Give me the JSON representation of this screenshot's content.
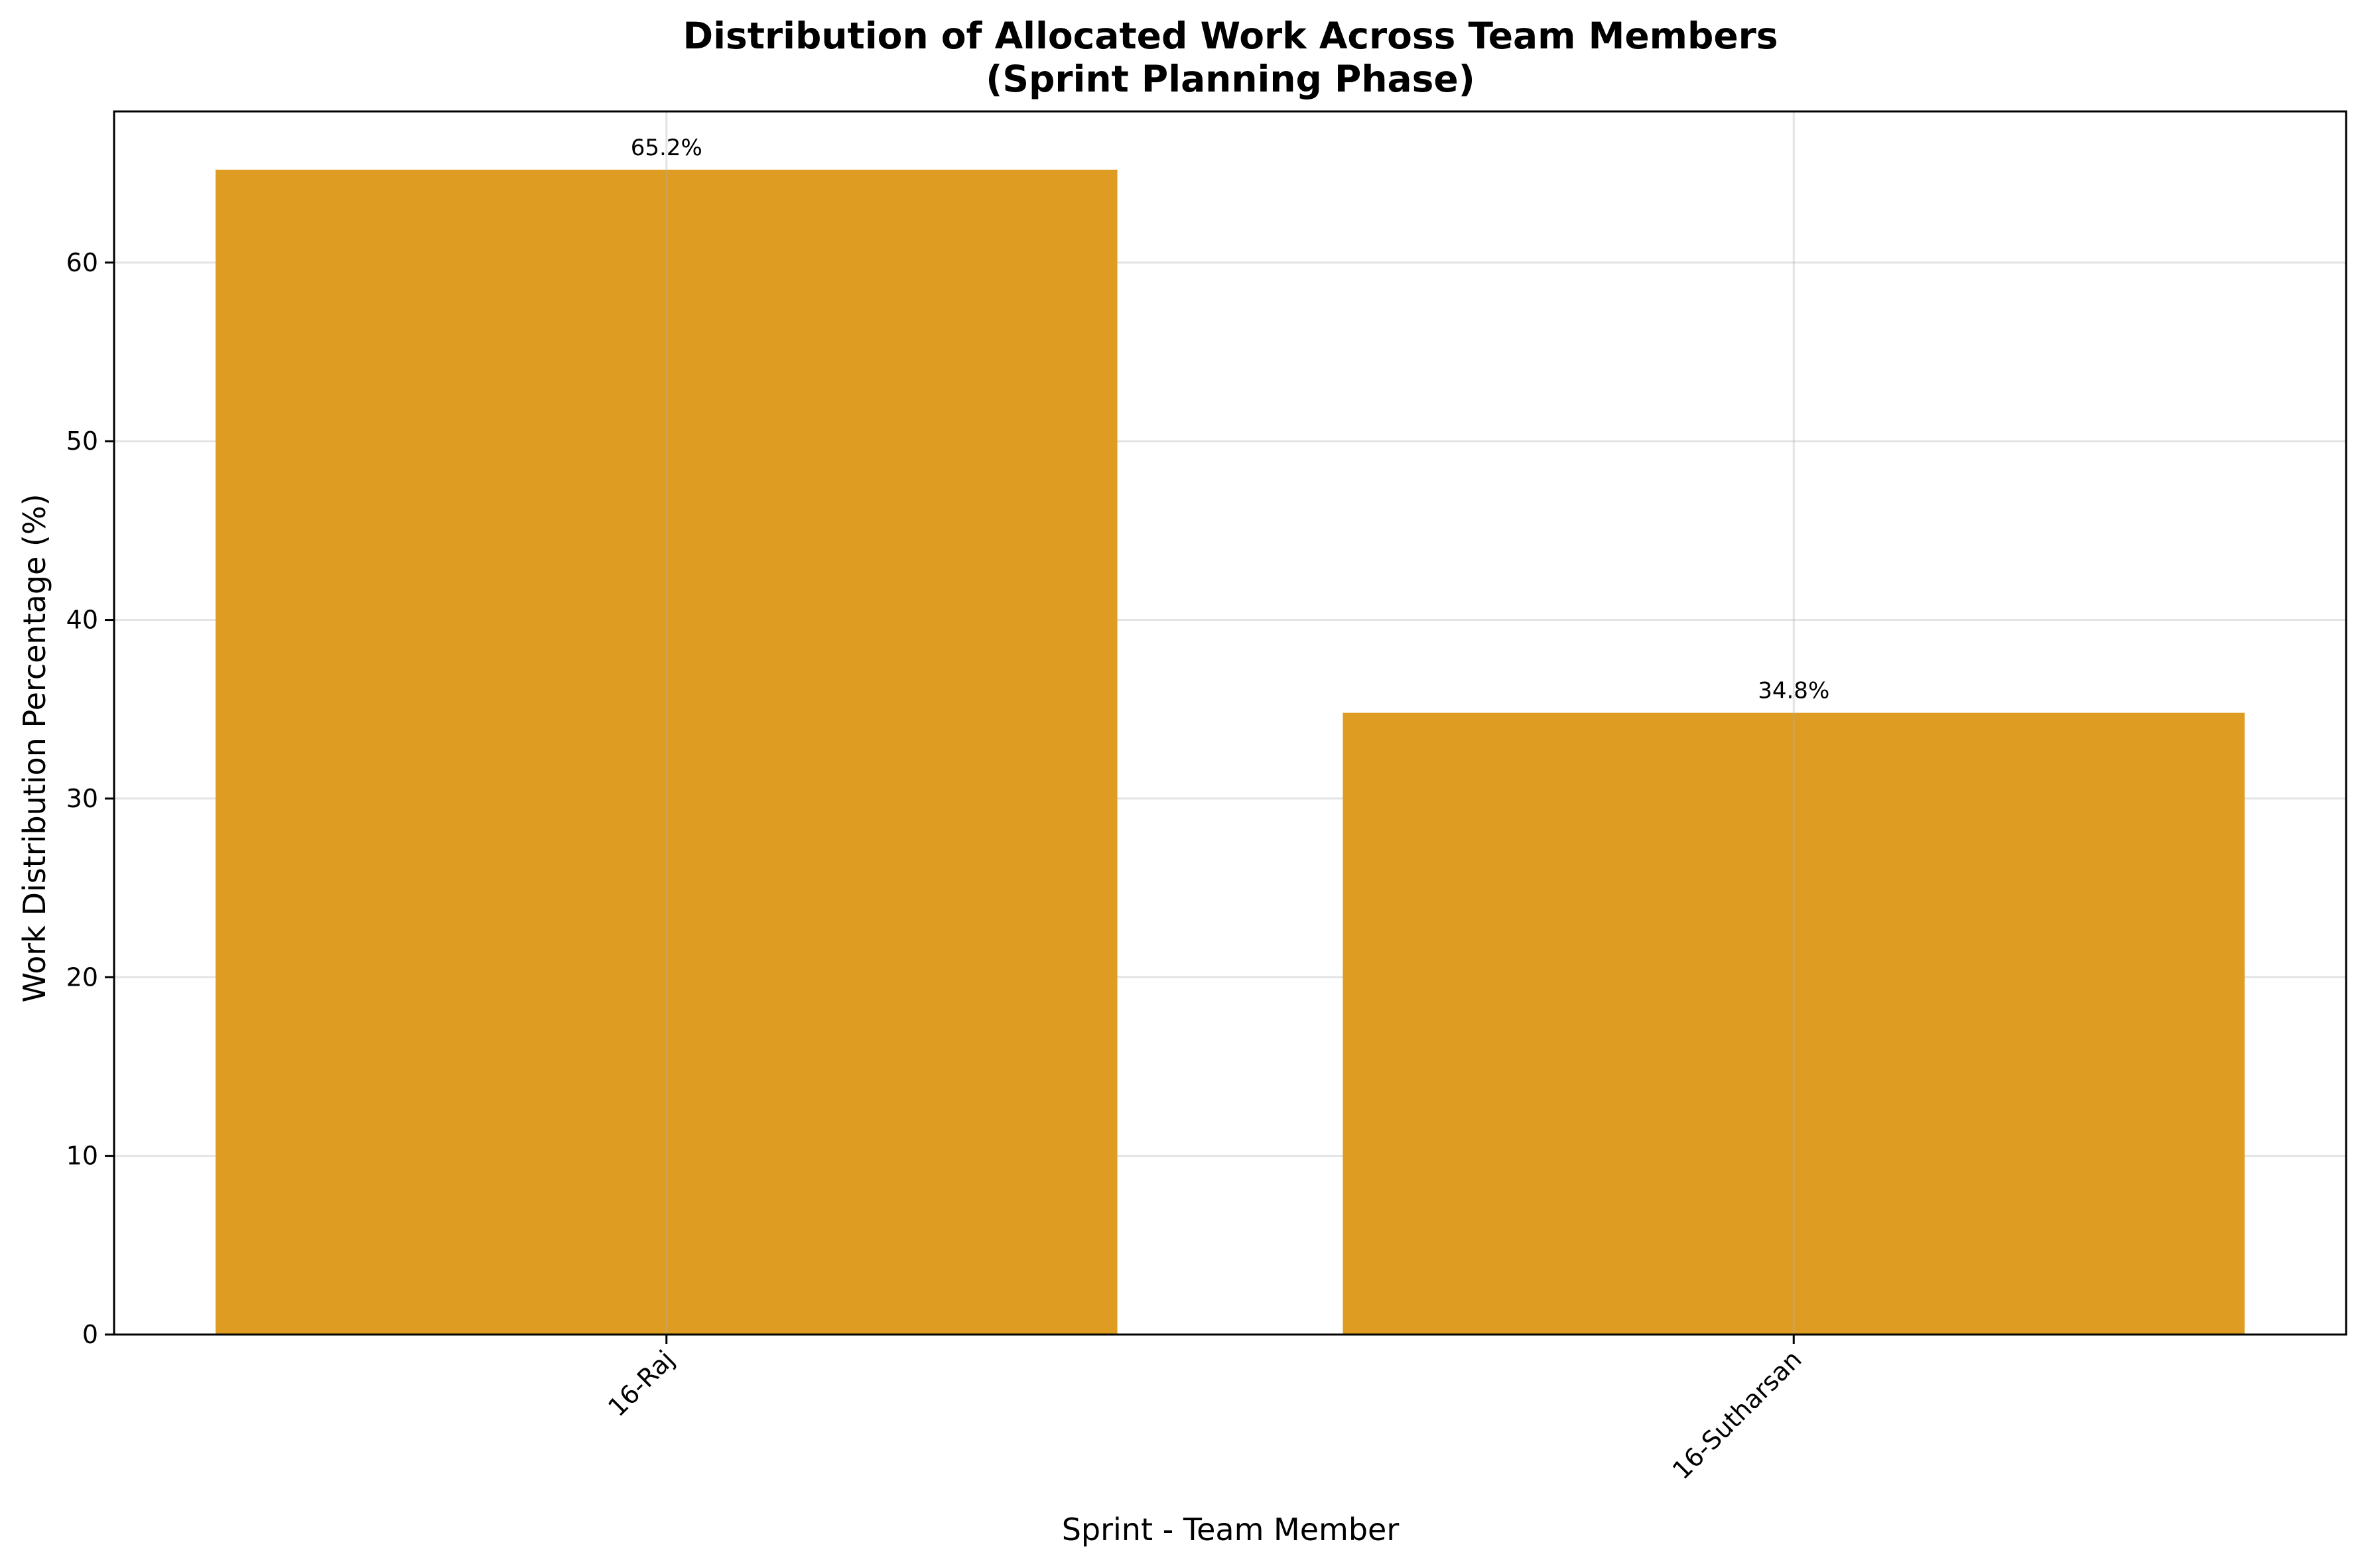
{
  "chart_data": {
    "type": "bar",
    "title_line1": "Distribution of Allocated Work Across Team Members",
    "title_line2": "(Sprint Planning Phase)",
    "xlabel": "Sprint - Team Member",
    "ylabel": "Work Distribution Percentage (%)",
    "categories": [
      "16-Raj",
      "16-Sutharsan"
    ],
    "values": [
      65.2,
      34.8
    ],
    "data_labels": [
      "65.2%",
      "34.8%"
    ],
    "ylim": [
      0,
      68.46
    ],
    "yticks": [
      0,
      10,
      20,
      30,
      40,
      50,
      60
    ],
    "grid": true,
    "bar_color": "#df9c22",
    "xtick_rotation_deg": 45
  }
}
